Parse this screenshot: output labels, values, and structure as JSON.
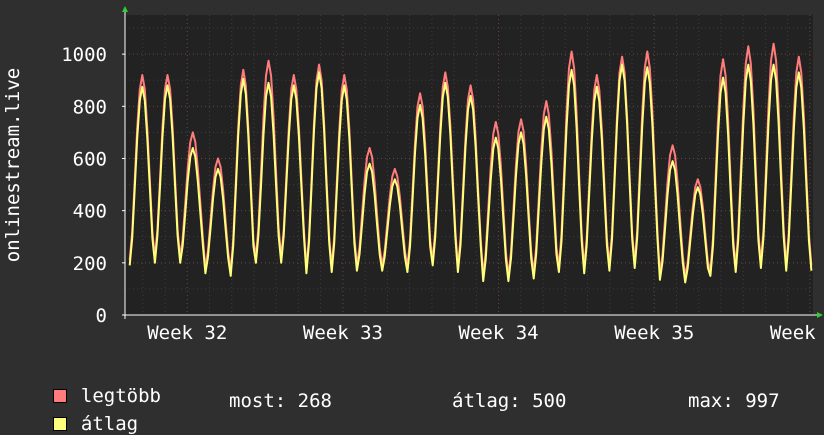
{
  "chart_data": {
    "type": "line",
    "ylabel": "onlinestream.live",
    "ylim": [
      0,
      1150
    ],
    "yticks": [
      0,
      200,
      400,
      600,
      800,
      1000
    ],
    "xlim": [
      31.6,
      36.02
    ],
    "xticks": [
      {
        "value": 32,
        "label": "Week 32"
      },
      {
        "value": 33,
        "label": "Week 33"
      },
      {
        "value": 34,
        "label": "Week 34"
      },
      {
        "value": 35,
        "label": "Week 35"
      },
      {
        "value": 36,
        "label": "Week 36"
      }
    ],
    "grid": true,
    "days": [
      {
        "max": 920,
        "avg": 875,
        "min": 190
      },
      {
        "max": 920,
        "avg": 880,
        "min": 200
      },
      {
        "max": 700,
        "avg": 640,
        "min": 200
      },
      {
        "max": 600,
        "avg": 560,
        "min": 160
      },
      {
        "max": 940,
        "avg": 905,
        "min": 150
      },
      {
        "max": 975,
        "avg": 890,
        "min": 200
      },
      {
        "max": 920,
        "avg": 880,
        "min": 200
      },
      {
        "max": 960,
        "avg": 930,
        "min": 160
      },
      {
        "max": 920,
        "avg": 880,
        "min": 165
      },
      {
        "max": 640,
        "avg": 580,
        "min": 170
      },
      {
        "max": 560,
        "avg": 520,
        "min": 170
      },
      {
        "max": 850,
        "avg": 805,
        "min": 165
      },
      {
        "max": 930,
        "avg": 890,
        "min": 190
      },
      {
        "max": 880,
        "avg": 840,
        "min": 165
      },
      {
        "max": 740,
        "avg": 680,
        "min": 130
      },
      {
        "max": 750,
        "avg": 700,
        "min": 130
      },
      {
        "max": 820,
        "avg": 760,
        "min": 140
      },
      {
        "max": 1010,
        "avg": 940,
        "min": 165
      },
      {
        "max": 920,
        "avg": 875,
        "min": 160
      },
      {
        "max": 990,
        "avg": 960,
        "min": 170
      },
      {
        "max": 1010,
        "avg": 950,
        "min": 180
      },
      {
        "max": 650,
        "avg": 590,
        "min": 135
      },
      {
        "max": 520,
        "avg": 490,
        "min": 125
      },
      {
        "max": 980,
        "avg": 910,
        "min": 150
      },
      {
        "max": 1030,
        "avg": 960,
        "min": 165
      },
      {
        "max": 1040,
        "avg": 960,
        "min": 180
      },
      {
        "max": 990,
        "avg": 930,
        "min": 170
      }
    ],
    "series": [
      {
        "name": "legtöbb",
        "color": "#ff7c7c"
      },
      {
        "name": "átlag",
        "color": "#ffff7c"
      }
    ]
  },
  "legend": {
    "items": [
      {
        "label": "legtöbb",
        "color": "#ff7c7c"
      },
      {
        "label": "átlag",
        "color": "#ffff7c"
      }
    ],
    "stats": {
      "now": "most: 268",
      "avg": "átlag: 500",
      "max": "max: 997"
    }
  }
}
